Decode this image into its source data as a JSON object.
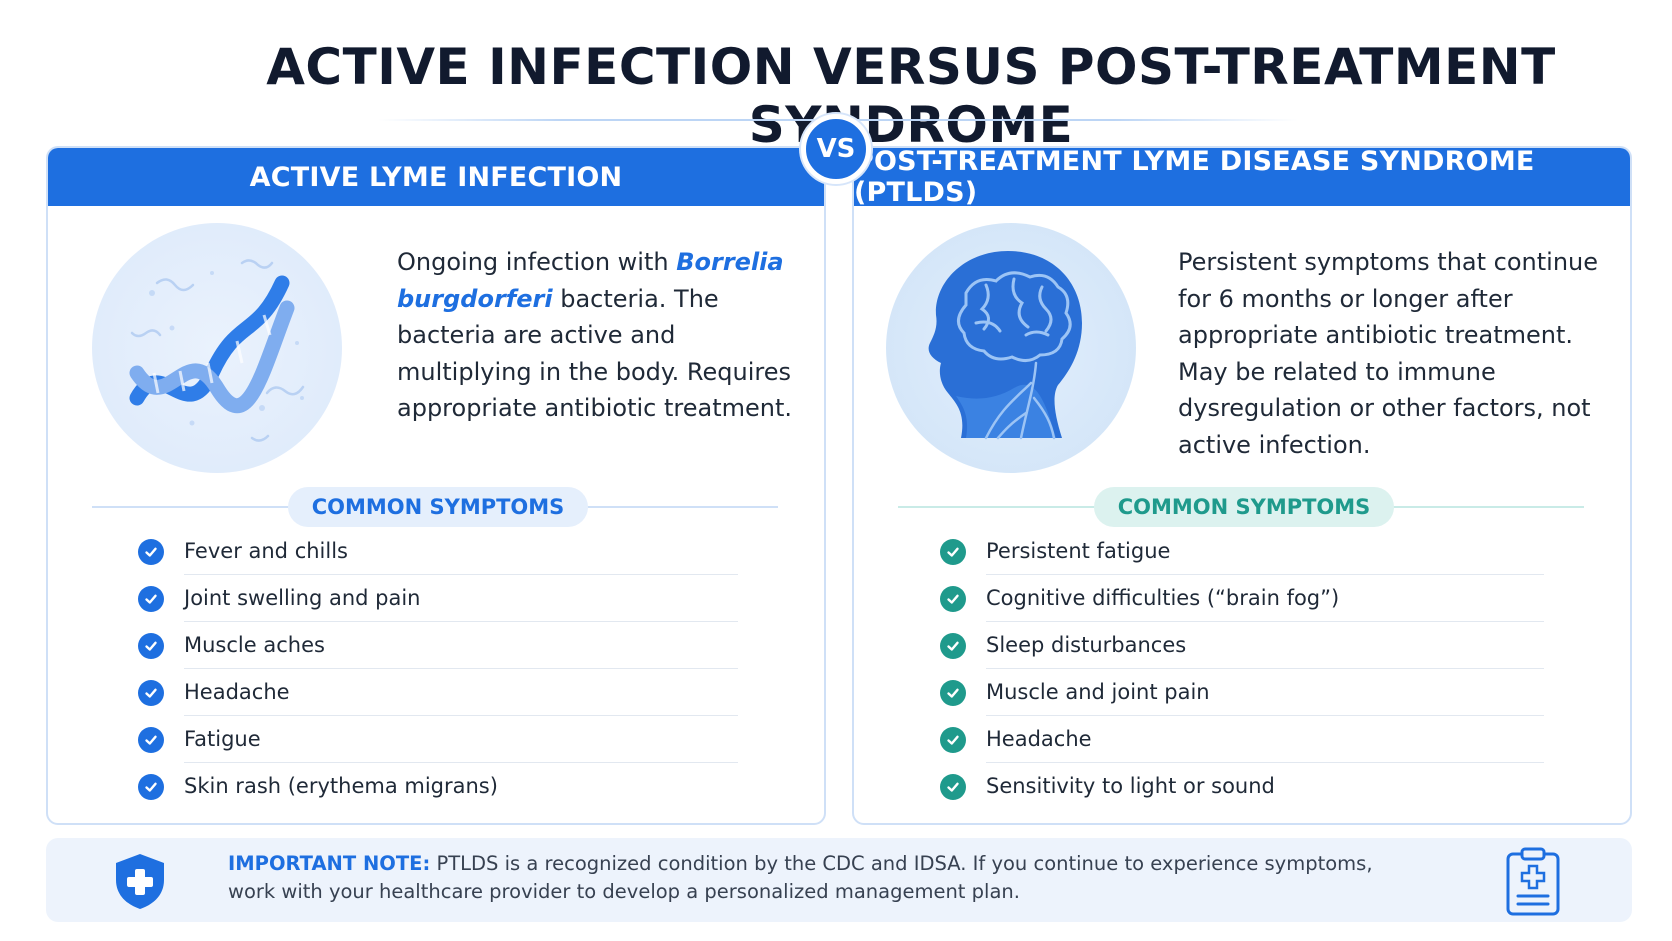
{
  "title": "ACTIVE INFECTION VERSUS POST-TREATMENT SYNDROME",
  "vs_label": "VS",
  "colors": {
    "primary_blue": "#1e6fe0",
    "teal": "#1f9a8c",
    "title_dark": "#111a2e"
  },
  "left_panel": {
    "header": "ACTIVE LYME INFECTION",
    "illustration_icon": "bacteria-helix-icon",
    "desc_part1": "Ongoing infection with",
    "desc_italic": "Borrelia burgdorferi",
    "desc_part2": "bacteria. The bacteria are active and multiplying in the body. Requires appropriate antibiotic treatment.",
    "symptoms_label": "COMMON SYMPTOMS",
    "symptoms": [
      "Fever and chills",
      "Joint swelling and pain",
      "Muscle aches",
      "Headache",
      "Fatigue",
      "Skin rash (erythema migrans)"
    ]
  },
  "right_panel": {
    "header": "POST-TREATMENT LYME DISEASE SYNDROME (PTLDS)",
    "illustration_icon": "head-brain-nervous-system-icon",
    "description": "Persistent symptoms that continue for 6 months or longer after appropriate antibiotic treatment. May be related to immune dysregulation or other factors, not active infection.",
    "symptoms_label": "COMMON SYMPTOMS",
    "symptoms": [
      "Persistent fatigue",
      "Cognitive difficulties (“brain fog”)",
      "Sleep disturbances",
      "Muscle and joint pain",
      "Headache",
      "Sensitivity to light or sound"
    ]
  },
  "note": {
    "label": "IMPORTANT NOTE:",
    "text": "PTLDS is a recognized condition by the CDC and IDSA. If you continue to experience symptoms, work with your healthcare provider to develop a personalized management plan.",
    "left_icon": "medical-shield-icon",
    "right_icon": "medical-clipboard-icon"
  }
}
